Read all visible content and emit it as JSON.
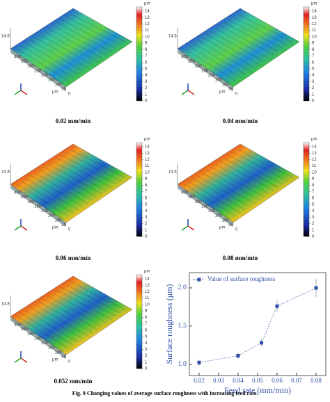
{
  "panels": [
    {
      "label": "0.02 mm/min",
      "scheme": "cool"
    },
    {
      "label": "0.04 mm/min",
      "scheme": "cool"
    },
    {
      "label": "0.06 mm/min",
      "scheme": "warm"
    },
    {
      "label": "0.08 mm/min",
      "scheme": "warm"
    },
    {
      "label": "0.052 mm/min",
      "scheme": "warm"
    }
  ],
  "colorbar": {
    "unit": "μm",
    "ticks": [
      0,
      1,
      2,
      3,
      4,
      5,
      6,
      7,
      8,
      9,
      10,
      11,
      12,
      13,
      14
    ]
  },
  "surface_height": "14.8",
  "surface_axis": [
    "400",
    "350",
    "300",
    "250",
    "200",
    "150",
    "100",
    "50",
    "0"
  ],
  "surface_axis_unit": "μm",
  "caption": "Fig. 9 Changing values of average surface roughness with increasing feed rate.",
  "chart_data": {
    "type": "line",
    "ylabel": "Surface roughness (μm)",
    "xlabel": "Feed rate (mm/min)",
    "x": [
      0.02,
      0.04,
      0.052,
      0.06,
      0.08
    ],
    "series": [
      {
        "name": "Value of surface roughness",
        "color": "#2b4fa8",
        "values": [
          1.02,
          1.11,
          1.28,
          1.76,
          2.0
        ],
        "errors": [
          0.04,
          0.04,
          0.05,
          0.08,
          0.12
        ]
      }
    ],
    "xlim": [
      0.015,
      0.085
    ],
    "xticks": [
      0.02,
      0.03,
      0.04,
      0.05,
      0.06,
      0.07,
      0.08
    ],
    "ylim": [
      0.85,
      2.2
    ],
    "yticks": [
      {
        "value": 1,
        "label": "1.0"
      },
      1.5,
      {
        "value": 2,
        "label": "2.0"
      }
    ],
    "legend": "upper-left"
  }
}
